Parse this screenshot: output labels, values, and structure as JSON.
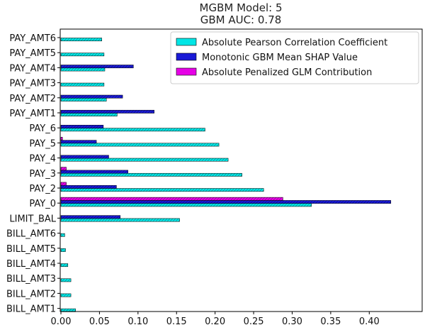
{
  "chart_data": {
    "type": "bar",
    "orientation": "horizontal",
    "title_lines": [
      "MGBM Model: 5",
      "GBM AUC: 0.78"
    ],
    "categories": [
      "PAY_AMT6",
      "PAY_AMT5",
      "PAY_AMT4",
      "PAY_AMT3",
      "PAY_AMT2",
      "PAY_AMT1",
      "PAY_6",
      "PAY_5",
      "PAY_4",
      "PAY_3",
      "PAY_2",
      "PAY_0",
      "LIMIT_BAL",
      "BILL_AMT6",
      "BILL_AMT5",
      "BILL_AMT4",
      "BILL_AMT3",
      "BILL_AMT2",
      "BILL_AMT1"
    ],
    "series": [
      {
        "name": "Absolute Pearson Correlation Coefficient",
        "color": "#00e5e5",
        "values": [
          0.053,
          0.056,
          0.057,
          0.056,
          0.059,
          0.073,
          0.187,
          0.205,
          0.217,
          0.235,
          0.263,
          0.325,
          0.154,
          0.005,
          0.006,
          0.009,
          0.013,
          0.013,
          0.019
        ]
      },
      {
        "name": "Monotonic GBM Mean SHAP Value",
        "color": "#1a1ad6",
        "values": [
          0.0,
          0.0,
          0.094,
          0.0,
          0.08,
          0.121,
          0.055,
          0.046,
          0.062,
          0.087,
          0.072,
          0.428,
          0.077,
          0.0,
          0.0,
          0.0,
          0.0,
          0.0,
          0.0
        ]
      },
      {
        "name": "Absolute Penalized GLM Contribution",
        "color": "#e600e6",
        "values": [
          0.0,
          0.0,
          0.0,
          0.0,
          0.0,
          0.0,
          0.0,
          0.002,
          0.0,
          0.007,
          0.007,
          0.288,
          0.0,
          0.0,
          0.0,
          0.0,
          0.0,
          0.0,
          0.0
        ]
      }
    ],
    "xlim": [
      0,
      0.45
    ],
    "xticks": [
      "0.00",
      "0.05",
      "0.10",
      "0.15",
      "0.20",
      "0.25",
      "0.30",
      "0.35",
      "0.40"
    ],
    "legend": "top-right",
    "grid": false
  }
}
